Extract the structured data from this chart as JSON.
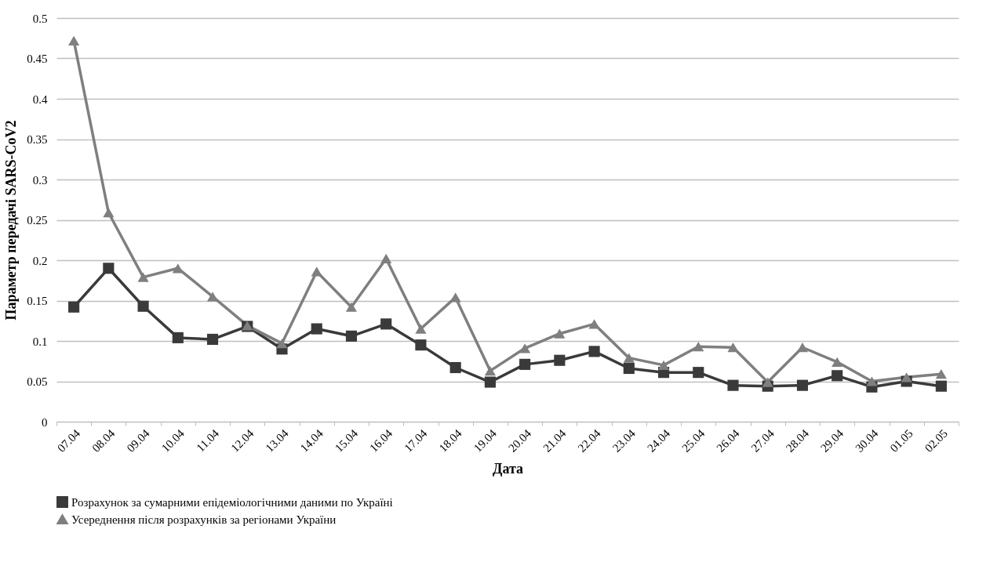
{
  "chart_data": {
    "type": "line",
    "xlabel": "Дата",
    "ylabel": "Параметр передачі SARS-CoV2",
    "categories": [
      "07.04",
      "08.04",
      "09.04",
      "10.04",
      "11.04",
      "12.04",
      "13.04",
      "14.04",
      "15.04",
      "16.04",
      "17.04",
      "18.04",
      "19.04",
      "20.04",
      "21.04",
      "22.04",
      "23.04",
      "24.04",
      "25.04",
      "26.04",
      "27.04",
      "28.04",
      "29.04",
      "30.04",
      "01.05",
      "02.05"
    ],
    "ylim": [
      0,
      0.5
    ],
    "yticks": [
      0,
      0.05,
      0.1,
      0.15,
      0.2,
      0.25,
      0.3,
      0.35,
      0.4,
      0.45,
      0.5
    ],
    "grid": "y",
    "legend": "bottom",
    "line_style": "solid",
    "series": [
      {
        "name": "Розрахунок за сумарними епідеміологічними даними по Україні",
        "color": "#3a3a3a",
        "marker": "square",
        "values": [
          0.142,
          0.19,
          0.143,
          0.104,
          0.102,
          0.118,
          0.09,
          0.115,
          0.106,
          0.121,
          0.095,
          0.067,
          0.049,
          0.071,
          0.076,
          0.087,
          0.066,
          0.061,
          0.061,
          0.045,
          0.044,
          0.045,
          0.057,
          0.043,
          0.05,
          0.044
        ]
      },
      {
        "name": "Усереднення після розрахунків за регіонами України",
        "color": "#7f7f7f",
        "marker": "triangle",
        "values": [
          0.472,
          0.259,
          0.179,
          0.19,
          0.155,
          0.119,
          0.097,
          0.186,
          0.142,
          0.202,
          0.115,
          0.154,
          0.063,
          0.091,
          0.109,
          0.121,
          0.079,
          0.07,
          0.093,
          0.092,
          0.049,
          0.092,
          0.074,
          0.05,
          0.055,
          0.059
        ]
      }
    ]
  }
}
